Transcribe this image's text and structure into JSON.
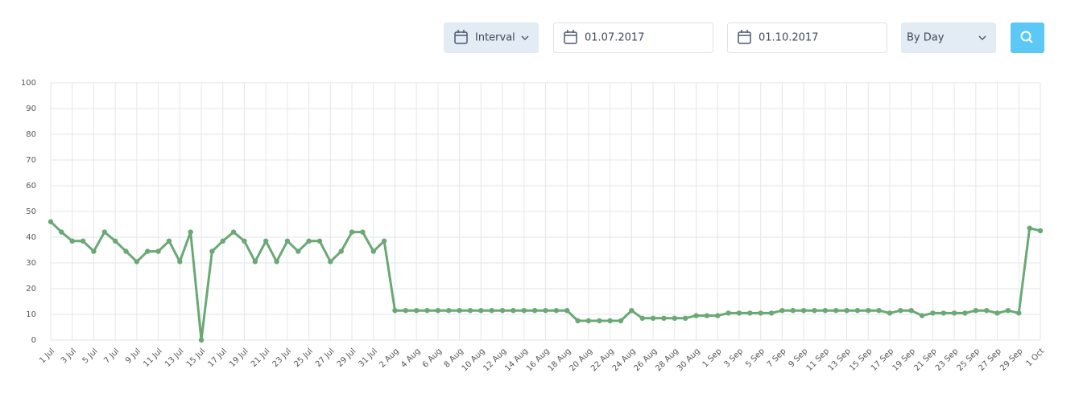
{
  "controls": {
    "interval": "Interval",
    "date_from": "01.07.2017",
    "date_to": "01.10.2017",
    "granularity": "By Day"
  },
  "chart_data": {
    "type": "line",
    "categories": [
      "1 Jul",
      null,
      "3 Jul",
      null,
      "5 Jul",
      null,
      "7 Jul",
      null,
      "9 Jul",
      null,
      "11 Jul",
      null,
      "13 Jul",
      null,
      "15 Jul",
      null,
      "17 Jul",
      null,
      "19 Jul",
      null,
      "21 Jul",
      null,
      "23 Jul",
      null,
      "25 Jul",
      null,
      "27 Jul",
      null,
      "29 Jul",
      null,
      "31 Jul",
      null,
      "2 Aug",
      null,
      "4 Aug",
      null,
      "6 Aug",
      null,
      "8 Aug",
      null,
      "10 Aug",
      null,
      "12 Aug",
      null,
      "14 Aug",
      null,
      "16 Aug",
      null,
      "18 Aug",
      null,
      "20 Aug",
      null,
      "22 Aug",
      null,
      "24 Aug",
      null,
      "26 Aug",
      null,
      "28 Aug",
      null,
      "30 Aug",
      null,
      "1 Sep",
      null,
      "3 Sep",
      null,
      "5 Sep",
      null,
      "7 Sep",
      null,
      "9 Sep",
      null,
      "11 Sep",
      null,
      "13 Sep",
      null,
      "15 Sep",
      null,
      "17 Sep",
      null,
      "19 Sep",
      null,
      "21 Sep",
      null,
      "23 Sep",
      null,
      "25 Sep",
      null,
      "27 Sep",
      null,
      "29 Sep",
      null,
      "1 Oct"
    ],
    "series": [
      {
        "color": "#6aa874",
        "values": [
          46,
          42,
          38.5,
          38.5,
          34.5,
          42,
          38.5,
          34.5,
          30.5,
          34.5,
          34.5,
          38.5,
          30.5,
          42,
          0,
          34.5,
          38.5,
          42,
          38.5,
          30.5,
          38.5,
          30.5,
          38.5,
          34.5,
          38.5,
          38.5,
          30.5,
          34.5,
          42,
          42,
          34.5,
          38.5,
          11.5,
          11.5,
          11.5,
          11.5,
          11.5,
          11.5,
          11.5,
          11.5,
          11.5,
          11.5,
          11.5,
          11.5,
          11.5,
          11.5,
          11.5,
          11.5,
          11.5,
          7.5,
          7.5,
          7.5,
          7.5,
          7.5,
          11.5,
          8.5,
          8.5,
          8.5,
          8.5,
          8.5,
          9.5,
          9.5,
          9.5,
          10.5,
          10.5,
          10.5,
          10.5,
          10.5,
          11.5,
          11.5,
          11.5,
          11.5,
          11.5,
          11.5,
          11.5,
          11.5,
          11.5,
          11.5,
          10.5,
          11.5,
          11.5,
          9.5,
          10.5,
          10.5,
          10.5,
          10.5,
          11.5,
          11.5,
          10.5,
          11.5,
          10.5,
          43.5,
          42.5
        ]
      }
    ],
    "ylim": [
      0,
      100
    ],
    "yticks": [
      0,
      10,
      20,
      30,
      40,
      50,
      60,
      70,
      80,
      90,
      100
    ],
    "grid": true
  }
}
